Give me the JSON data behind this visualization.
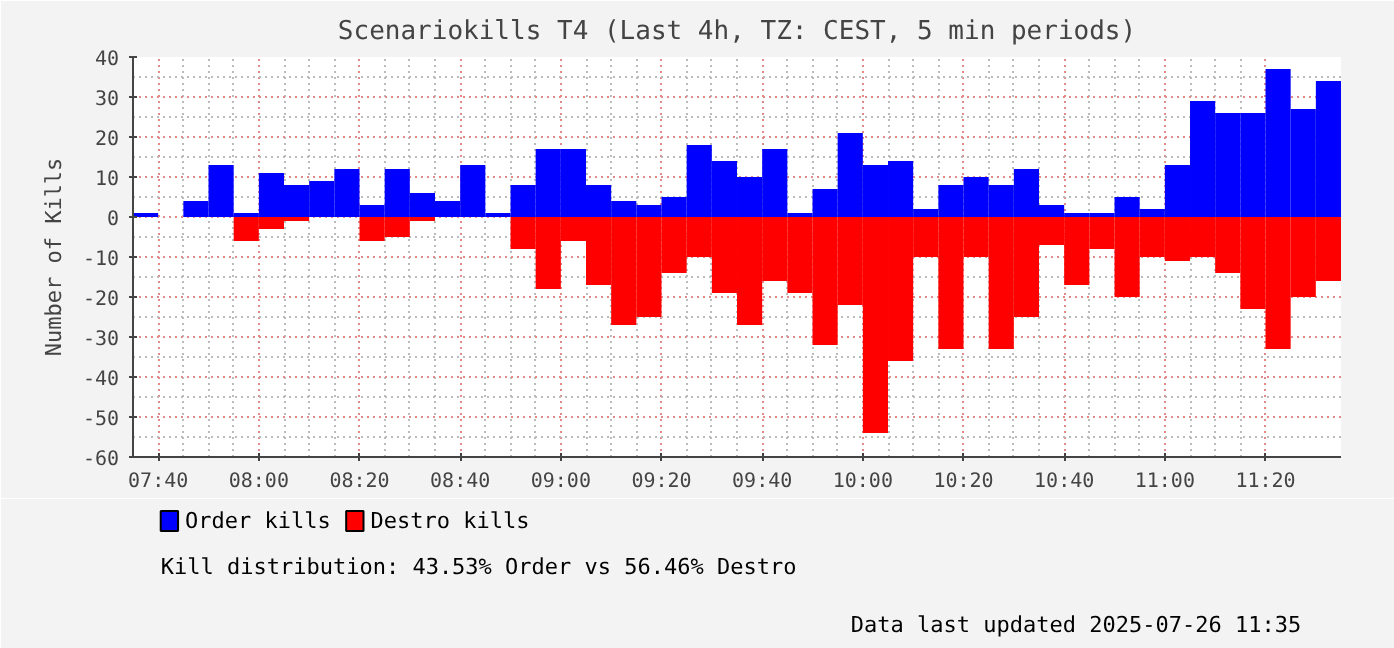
{
  "chart_data": {
    "type": "bar",
    "title": "Scenariokills T4 (Last 4h, TZ: CEST, 5 min periods)",
    "ylabel": "Number of Kills",
    "x": [
      7.625,
      7.7083,
      7.7917,
      7.875,
      7.9583,
      8.0417,
      8.125,
      8.2083,
      8.2917,
      8.375,
      8.4583,
      8.5417,
      8.625,
      8.7083,
      8.7917,
      8.875,
      8.9583,
      9.0417,
      9.125,
      9.2083,
      9.2917,
      9.375,
      9.4583,
      9.5417,
      9.625,
      9.7083,
      9.7917,
      9.875,
      9.9583,
      10.0417,
      10.125,
      10.2083,
      10.2917,
      10.375,
      10.4583,
      10.5417,
      10.625,
      10.7083,
      10.7917,
      10.875,
      10.9583,
      11.0417,
      11.125,
      11.2083,
      11.2917,
      11.375,
      11.4583,
      11.5417
    ],
    "series": [
      {
        "name": "Order kills",
        "color": "#0000ff",
        "values": [
          1,
          0,
          4,
          13,
          1,
          11,
          8,
          9,
          12,
          3,
          12,
          6,
          4,
          13,
          1,
          8,
          17,
          17,
          8,
          4,
          3,
          5,
          18,
          14,
          10,
          17,
          1,
          7,
          21,
          13,
          14,
          2,
          8,
          10,
          8,
          12,
          3,
          1,
          1,
          5,
          2,
          13,
          29,
          26,
          26,
          37,
          27,
          34
        ]
      },
      {
        "name": "Destro kills",
        "color": "#ff0000",
        "values": [
          0,
          0,
          0,
          0,
          -6,
          -3,
          -1,
          0,
          0,
          -6,
          -5,
          -1,
          0,
          0,
          0,
          -8,
          -18,
          -6,
          -17,
          -27,
          -25,
          -14,
          -10,
          -19,
          -27,
          -16,
          -19,
          -32,
          -22,
          -54,
          -36,
          -10,
          -33,
          -10,
          -33,
          -25,
          -7,
          -17,
          -8,
          -20,
          -10,
          -11,
          -10,
          -14,
          -23,
          -33,
          -20,
          -16
        ]
      }
    ],
    "xlim": [
      7.5833,
      11.5833
    ],
    "xticks": [
      {
        "value": 7.6667,
        "label": "07:40"
      },
      {
        "value": 8,
        "label": "08:00"
      },
      {
        "value": 8.3333,
        "label": "08:20"
      },
      {
        "value": 8.6667,
        "label": "08:40"
      },
      {
        "value": 9,
        "label": "09:00"
      },
      {
        "value": 9.3333,
        "label": "09:20"
      },
      {
        "value": 9.6667,
        "label": "09:40"
      },
      {
        "value": 10,
        "label": "10:00"
      },
      {
        "value": 10.3333,
        "label": "10:20"
      },
      {
        "value": 10.6667,
        "label": "10:40"
      },
      {
        "value": 11,
        "label": "11:00"
      },
      {
        "value": 11.3333,
        "label": "11:20"
      }
    ],
    "ylim": [
      -60,
      40
    ],
    "yticks": [
      -60,
      -50,
      -40,
      -30,
      -20,
      -10,
      0,
      10,
      20,
      30,
      40
    ],
    "grid": true,
    "legend": "bottom",
    "stacked": true,
    "annotations": [
      "Kill distribution: 43.53% Order vs 56.46% Destro",
      "Data last updated 2025-07-26 11:35"
    ]
  }
}
